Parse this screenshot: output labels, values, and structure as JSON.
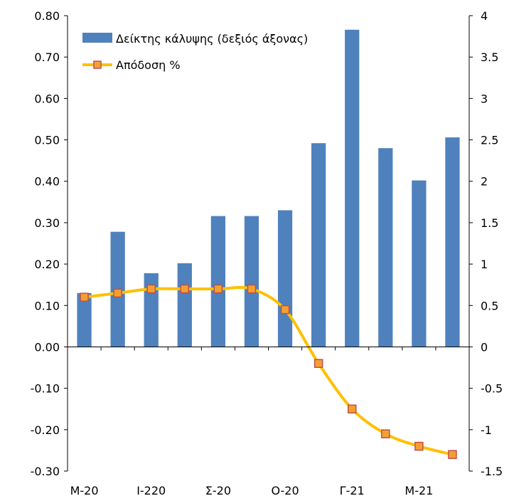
{
  "chart_data": {
    "type": "bar+line",
    "title": "",
    "categories": [
      "M-20",
      "",
      "I-220",
      "",
      "Σ-20",
      "",
      "O-20",
      "",
      "Γ-21",
      "",
      "M-21",
      ""
    ],
    "x_tick_labels": [
      "M-20",
      "I-220",
      "Σ-20",
      "O-20",
      "Γ-21",
      "M-21"
    ],
    "series": [
      {
        "name": "Δείκτης κάλυψης (δεξιός άξονας)",
        "type": "bar",
        "axis": "right",
        "color": "#4F81BD",
        "values": [
          0.65,
          1.39,
          0.89,
          1.01,
          1.58,
          1.58,
          1.65,
          2.46,
          3.83,
          2.4,
          2.01,
          2.53
        ]
      },
      {
        "name": "Απόδοση %",
        "type": "line",
        "axis": "left",
        "color": "#FFC000",
        "marker_color": "#F4A030",
        "marker_edge": "#C0504D",
        "values": [
          0.12,
          0.13,
          0.14,
          0.14,
          0.14,
          0.14,
          0.09,
          -0.04,
          -0.15,
          -0.21,
          -0.24,
          -0.26
        ]
      }
    ],
    "left_axis": {
      "ylim": [
        -0.3,
        0.8
      ],
      "ticks": [
        "0.80",
        "0.70",
        "0.60",
        "0.50",
        "0.40",
        "0.30",
        "0.20",
        "0.10",
        "0.00",
        "-0.10",
        "-0.20",
        "-0.30"
      ]
    },
    "right_axis": {
      "ylim": [
        -1.5,
        4
      ],
      "ticks": [
        "4",
        "3.5",
        "3",
        "2.5",
        "2",
        "1.5",
        "1",
        "0.5",
        "0",
        "-0.5",
        "-1",
        "-1.5"
      ]
    },
    "grid": false,
    "legend_position": "top-left"
  }
}
